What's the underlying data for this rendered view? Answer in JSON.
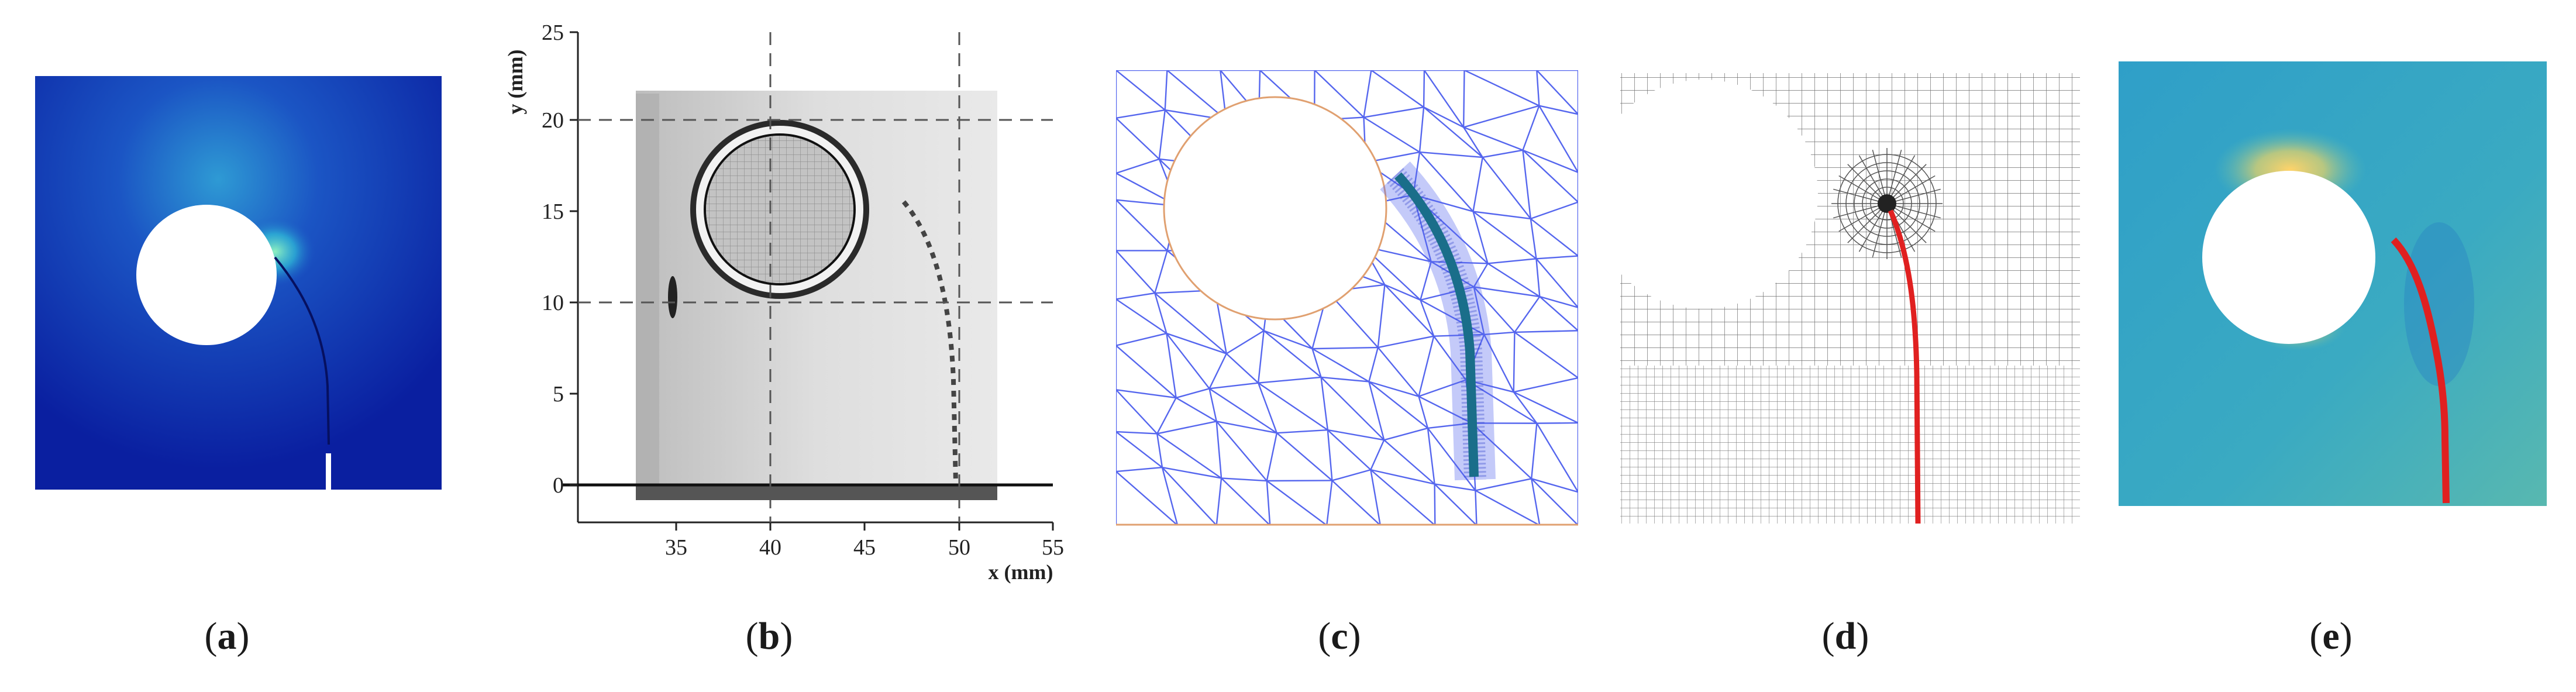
{
  "panels": [
    {
      "id": "a",
      "label": "a"
    },
    {
      "id": "b",
      "label": "b"
    },
    {
      "id": "c",
      "label": "c"
    },
    {
      "id": "d",
      "label": "d"
    },
    {
      "id": "e",
      "label": "e"
    }
  ],
  "panel_b": {
    "xlabel": "x (mm)",
    "ylabel": "y (mm)",
    "x_ticks": [
      "35",
      "40",
      "45",
      "50",
      "55"
    ],
    "y_ticks": [
      "0",
      "5",
      "10",
      "15",
      "20",
      "25"
    ]
  },
  "colors": {
    "stress_field_background": "#0a1fa0",
    "mesh_blue": "#5566ee",
    "mesh_outline_orange": "#e0a070",
    "crack_path_teal": "#1a6e8a",
    "crack_path_red": "#e02020",
    "field_teal": "#35a9bf",
    "field_yellow": "#f2c25a"
  }
}
